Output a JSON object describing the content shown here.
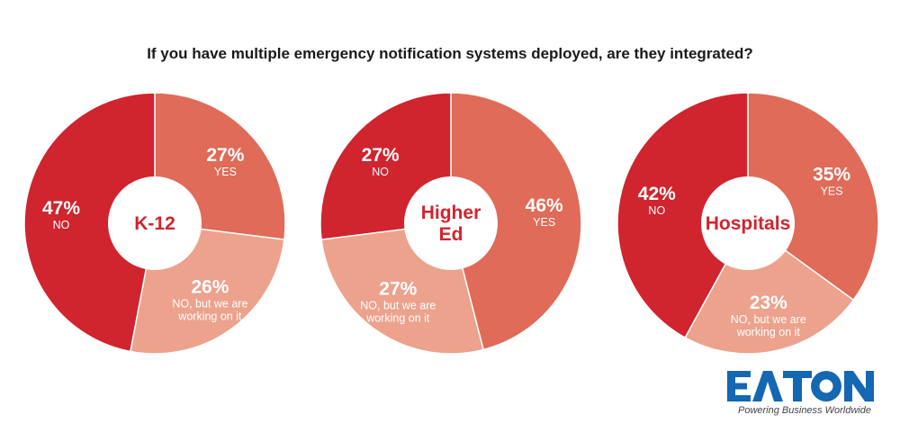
{
  "title": "If you have multiple emergency notification systems deployed, are they integrated?",
  "colors": {
    "no": "#d0242e",
    "yes": "#df6b58",
    "working": "#eca28c",
    "center_text": "#d0242e",
    "logo_blue": "#1467b2"
  },
  "chart_data": [
    {
      "type": "pie",
      "center_label": [
        "K-12"
      ],
      "slices": [
        {
          "value": 27,
          "percent_label": "27%",
          "category_lines": [
            "YES"
          ],
          "color_key": "yes"
        },
        {
          "value": 26,
          "percent_label": "26%",
          "category_lines": [
            "NO, but we are",
            "working on it"
          ],
          "color_key": "working"
        },
        {
          "value": 47,
          "percent_label": "47%",
          "category_lines": [
            "NO"
          ],
          "color_key": "no"
        }
      ]
    },
    {
      "type": "pie",
      "center_label": [
        "Higher",
        "Ed"
      ],
      "slices": [
        {
          "value": 46,
          "percent_label": "46%",
          "category_lines": [
            "YES"
          ],
          "color_key": "yes"
        },
        {
          "value": 27,
          "percent_label": "27%",
          "category_lines": [
            "NO, but we are",
            "working on it"
          ],
          "color_key": "working"
        },
        {
          "value": 27,
          "percent_label": "27%",
          "category_lines": [
            "NO"
          ],
          "color_key": "no"
        }
      ]
    },
    {
      "type": "pie",
      "center_label": [
        "Hospitals"
      ],
      "slices": [
        {
          "value": 35,
          "percent_label": "35%",
          "category_lines": [
            "YES"
          ],
          "color_key": "yes"
        },
        {
          "value": 23,
          "percent_label": "23%",
          "category_lines": [
            "NO, but we are",
            "working on it"
          ],
          "color_key": "working"
        },
        {
          "value": 42,
          "percent_label": "42%",
          "category_lines": [
            "NO"
          ],
          "color_key": "no"
        }
      ]
    }
  ],
  "logo": {
    "brand": "EATON",
    "tagline": "Powering Business Worldwide"
  }
}
